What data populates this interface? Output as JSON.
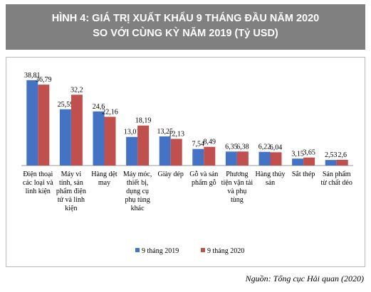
{
  "chart_data": {
    "type": "bar",
    "title": [
      "HÌNH 4: GIÁ TRỊ XUẤT KHẨU 9 THÁNG ĐẦU NĂM 2020",
      "SO VỚI CÙNG KỲ NĂM 2019 (Tỷ USD)"
    ],
    "categories": [
      "Điện thoại các loại và linh kiện",
      "Máy vi tính, sản phẩm điện tử và linh kiện",
      "Hàng dệt may",
      "Máy móc, thiết bị, dụng cụ phụ tùng khác",
      "Giày dép",
      "Gỗ và sản phẩm gỗ",
      "Phương tiện vận tải và phụ tùng",
      "Hàng thủy sản",
      "Sắt thép",
      "Sản phẩm từ chất dẻo"
    ],
    "series": [
      {
        "name": "9 tháng 2019",
        "color": "#4472c4",
        "values": [
          38.81,
          25.59,
          24.6,
          13.01,
          13.25,
          7.54,
          6.35,
          6.22,
          3.15,
          2.53
        ],
        "value_labels": [
          "38,81",
          "25,59",
          "24,6",
          "13,01",
          "13,25",
          "7,54",
          "6,35",
          "6,22",
          "3,15",
          "2,53"
        ]
      },
      {
        "name": "9 tháng 2020",
        "color": "#c0504d",
        "values": [
          36.79,
          32.2,
          22.16,
          18.19,
          12.13,
          8.49,
          6.38,
          6.04,
          3.65,
          2.6
        ],
        "value_labels": [
          "36,79",
          "32,2",
          "22,16",
          "18,19",
          "12,13",
          "8,49",
          "6,38",
          "6,04",
          "3,65",
          "2,6"
        ]
      }
    ],
    "ylim": [
      0,
      42
    ],
    "source": "Nguồn: Tổng cục Hải quan (2020)"
  }
}
